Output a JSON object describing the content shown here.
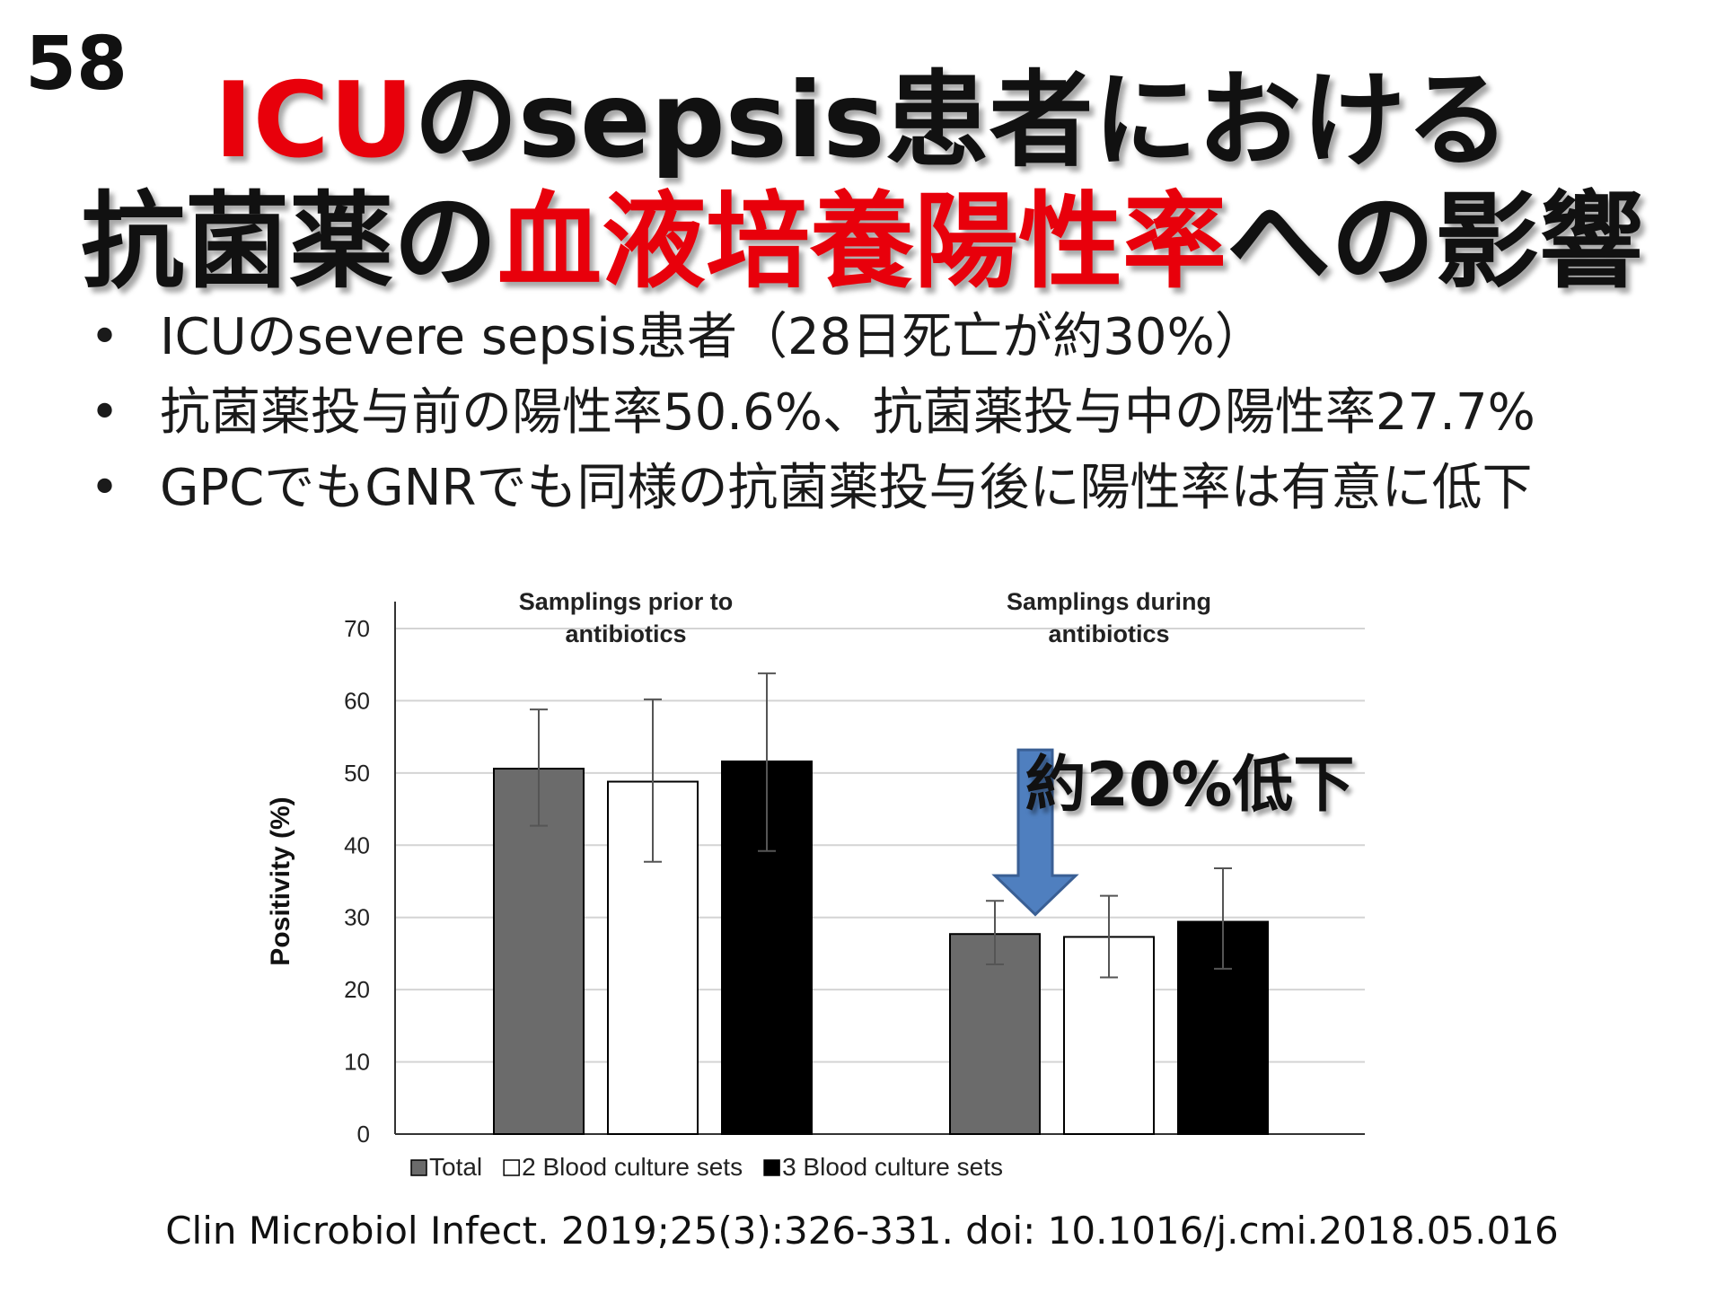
{
  "slide_number": "58",
  "title": {
    "line1": [
      {
        "text": "ICU",
        "red": true
      },
      {
        "text": "のsepsis患者における",
        "red": false
      }
    ],
    "line2": [
      {
        "text": "抗菌薬の",
        "red": false
      },
      {
        "text": "血液培養陽性率",
        "red": true
      },
      {
        "text": "への影響",
        "red": false
      }
    ]
  },
  "bullets": [
    "ICUのsevere sepsis患者（28日死亡が約30%）",
    "抗菌薬投与前の陽性率50.6%、抗菌薬投与中の陽性率27.7%",
    "GPCでもGNRでも同様の抗菌薬投与後に陽性率は有意に低下"
  ],
  "bullet_symbol": "•",
  "annotation": "約20%低下",
  "citation": "Clin Microbiol Infect. 2019;25(3):326-331. doi: 10.1016/j.cmi.2018.05.016",
  "colors": {
    "accent_red": "#e8000b",
    "arrow_fill": "#4f7fbf",
    "arrow_stroke": "#3a5f94",
    "total_bar": "#6b6b6b",
    "two_sets_bar": "#ffffff",
    "three_sets_bar": "#000000"
  },
  "chart_data": {
    "type": "bar",
    "ylabel": "Positivity (%)",
    "ylim": [
      0,
      70
    ],
    "yticks": [
      0,
      10,
      20,
      30,
      40,
      50,
      60,
      70
    ],
    "grid": true,
    "legend_position": "bottom",
    "groups": [
      "Samplings prior to antibiotics",
      "Samplings during antibiotics"
    ],
    "group_label_lines": [
      [
        "Samplings prior to",
        "antibiotics"
      ],
      [
        "Samplings during",
        "antibiotics"
      ]
    ],
    "series": [
      {
        "name": "Total",
        "values": [
          50.6,
          27.7
        ],
        "err_low": [
          42.7,
          23.5
        ],
        "err_high": [
          58.8,
          32.3
        ]
      },
      {
        "name": "2 Blood culture sets",
        "values": [
          48.8,
          27.3
        ],
        "err_low": [
          37.7,
          21.7
        ],
        "err_high": [
          60.2,
          33.0
        ]
      },
      {
        "name": "3 Blood culture sets",
        "values": [
          51.6,
          29.4
        ],
        "err_low": [
          39.2,
          22.9
        ],
        "err_high": [
          63.8,
          36.8
        ]
      }
    ],
    "annotation_arrow": {
      "group_index": 1,
      "series_index": 1,
      "direction": "down"
    }
  }
}
